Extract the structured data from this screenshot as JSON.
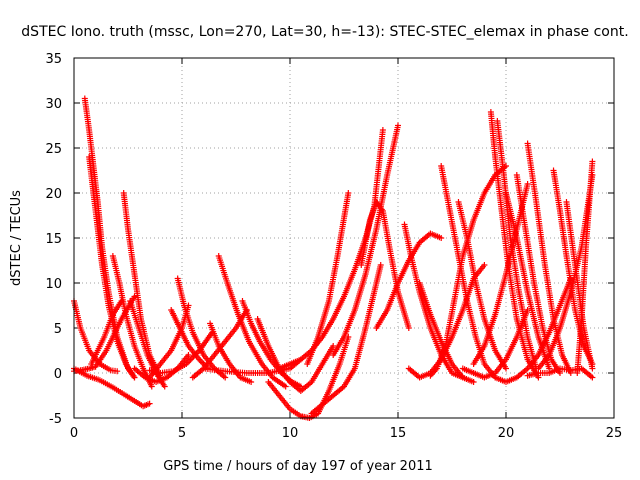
{
  "chart_data": {
    "type": "scatter",
    "title": "dSTEC Iono. truth (mssc, Lon=270, Lat=30, h=-13): STEC-STEC_elemax in phase cont.",
    "xlabel": "GPS time / hours of day 197 of year 2011",
    "ylabel": "dSTEC  / TECUs",
    "xlim": [
      0,
      25
    ],
    "ylim": [
      -5,
      35
    ],
    "xticks": [
      "0",
      "5",
      "10",
      "15",
      "20",
      "25"
    ],
    "yticks": [
      "-5",
      "0",
      "5",
      "10",
      "15",
      "20",
      "25",
      "30",
      "35"
    ],
    "grid": true,
    "marker": "+",
    "color": "#ff0000",
    "series": [
      {
        "x": [
          0.0,
          0.3,
          0.7,
          1.2,
          1.7,
          2.0
        ],
        "y": [
          8.0,
          5.0,
          2.5,
          1.0,
          0.3,
          0.2
        ]
      },
      {
        "x": [
          0.0,
          0.6,
          1.2,
          1.8,
          2.4,
          2.8,
          3.2,
          3.5
        ],
        "y": [
          0.5,
          -0.3,
          -0.8,
          -1.6,
          -2.5,
          -3.1,
          -3.7,
          -3.4
        ]
      },
      {
        "x": [
          0.0,
          0.3,
          0.7,
          1.0,
          1.5,
          1.8,
          2.2,
          2.8
        ],
        "y": [
          0.2,
          0.3,
          0.5,
          0.7,
          2.5,
          4.0,
          6.0,
          8.5
        ]
      },
      {
        "x": [
          0.5,
          0.7,
          0.9,
          1.1,
          1.3,
          1.6,
          2.0,
          2.5,
          2.8
        ],
        "y": [
          30.5,
          27.0,
          23.0,
          19.0,
          14.0,
          9.0,
          4.0,
          0.5,
          -0.5
        ]
      },
      {
        "x": [
          0.7,
          0.9,
          1.1,
          1.3,
          1.6,
          2.0,
          2.4,
          2.8
        ],
        "y": [
          24.0,
          20.0,
          16.0,
          12.0,
          7.5,
          3.5,
          1.0,
          -0.5
        ]
      },
      {
        "x": [
          0.8,
          1.1,
          1.4,
          1.8,
          2.2
        ],
        "y": [
          1.0,
          2.5,
          4.0,
          6.5,
          8.0
        ]
      },
      {
        "x": [
          1.8,
          2.1,
          2.4,
          2.8,
          3.2,
          3.6
        ],
        "y": [
          13.0,
          10.0,
          6.5,
          3.0,
          0.5,
          -1.5
        ]
      },
      {
        "x": [
          2.3,
          2.5,
          2.8,
          3.1,
          3.5,
          4.0
        ],
        "y": [
          20.0,
          16.0,
          11.0,
          6.0,
          2.0,
          -0.5
        ]
      },
      {
        "x": [
          2.6,
          3.0,
          3.4,
          3.8,
          4.2
        ],
        "y": [
          8.0,
          5.0,
          2.0,
          0.0,
          -1.5
        ]
      },
      {
        "x": [
          2.8,
          3.3,
          3.8,
          4.3,
          4.8,
          5.3
        ],
        "y": [
          0.5,
          -0.5,
          -1.0,
          -0.5,
          0.5,
          2.0
        ]
      },
      {
        "x": [
          3.5,
          4.0,
          4.5,
          5.0,
          5.3
        ],
        "y": [
          -0.5,
          1.0,
          2.5,
          5.0,
          7.5
        ]
      },
      {
        "x": [
          4.8,
          5.1,
          5.5,
          6.0,
          6.5,
          7.0
        ],
        "y": [
          10.5,
          7.5,
          4.5,
          2.0,
          0.5,
          -0.5
        ]
      },
      {
        "x": [
          4.5,
          4.9,
          5.3,
          5.8,
          6.2
        ],
        "y": [
          7.0,
          5.0,
          3.0,
          1.5,
          0.5
        ]
      },
      {
        "x": [
          3.5,
          4.0,
          4.6,
          5.2,
          5.8,
          6.4
        ],
        "y": [
          0.3,
          0.0,
          0.2,
          1.0,
          2.5,
          4.5
        ]
      },
      {
        "x": [
          6.3,
          6.7,
          7.2,
          7.7,
          8.2
        ],
        "y": [
          5.5,
          3.0,
          1.0,
          -0.5,
          -1.0
        ]
      },
      {
        "x": [
          5.5,
          6.0,
          6.5,
          7.0,
          7.5,
          8.0
        ],
        "y": [
          -0.5,
          0.5,
          2.0,
          3.5,
          5.0,
          7.0
        ]
      },
      {
        "x": [
          6.7,
          7.1,
          7.6,
          8.1,
          8.7,
          9.2,
          9.8
        ],
        "y": [
          13.0,
          10.0,
          6.5,
          3.5,
          1.0,
          -0.5,
          -1.5
        ]
      },
      {
        "x": [
          7.8,
          8.2,
          8.6,
          9.1,
          9.6,
          10.1,
          10.5
        ],
        "y": [
          8.0,
          5.5,
          3.5,
          1.5,
          0.0,
          -1.0,
          -1.5
        ]
      },
      {
        "x": [
          6.0,
          7.0,
          8.0,
          9.0,
          10.0,
          10.5
        ],
        "y": [
          0.5,
          0.2,
          0.0,
          0.0,
          0.5,
          1.5
        ]
      },
      {
        "x": [
          8.5,
          9.0,
          9.5,
          10.0,
          10.5,
          11.0,
          11.5,
          12.0
        ],
        "y": [
          6.0,
          3.0,
          0.5,
          -1.0,
          -2.0,
          -1.0,
          1.0,
          3.0
        ]
      },
      {
        "x": [
          9.0,
          9.5,
          10.0,
          10.5,
          10.9,
          11.3,
          11.8,
          12.3,
          12.7
        ],
        "y": [
          -1.0,
          -2.5,
          -4.0,
          -4.8,
          -5.0,
          -4.5,
          -2.0,
          1.0,
          4.0
        ]
      },
      {
        "x": [
          11.0,
          11.5,
          12.0,
          12.5,
          13.0,
          13.5,
          14.0,
          14.2
        ],
        "y": [
          -4.5,
          -3.5,
          -2.5,
          -1.5,
          0.5,
          5.0,
          10.0,
          12.0
        ]
      },
      {
        "x": [
          10.8,
          11.3,
          11.8,
          12.2,
          12.7
        ],
        "y": [
          1.0,
          4.0,
          8.0,
          13.0,
          20.0
        ]
      },
      {
        "x": [
          9.5,
          10.0,
          10.5,
          11.0,
          11.5,
          12.0,
          12.5,
          13.0,
          13.5,
          13.9,
          14.3
        ],
        "y": [
          0.5,
          1.0,
          1.5,
          2.5,
          4.0,
          6.0,
          8.5,
          11.5,
          15.0,
          18.5,
          27.0
        ]
      },
      {
        "x": [
          12.0,
          12.5,
          13.0,
          13.5,
          14.0,
          14.5,
          15.0
        ],
        "y": [
          2.0,
          4.0,
          7.0,
          11.0,
          16.0,
          22.0,
          27.5
        ]
      },
      {
        "x": [
          13.3,
          13.7,
          14.0,
          14.3,
          14.6,
          15.0,
          15.5
        ],
        "y": [
          12.0,
          17.0,
          19.0,
          18.0,
          14.0,
          9.0,
          5.0
        ]
      },
      {
        "x": [
          14.0,
          14.5,
          15.0,
          15.5,
          16.0,
          16.5,
          17.0
        ],
        "y": [
          5.0,
          7.0,
          10.0,
          12.5,
          14.5,
          15.5,
          15.0
        ]
      },
      {
        "x": [
          15.3,
          15.6,
          16.0,
          16.5,
          17.0,
          17.5,
          18.0
        ],
        "y": [
          16.5,
          13.0,
          9.0,
          5.0,
          2.0,
          0.0,
          -0.5
        ]
      },
      {
        "x": [
          15.5,
          16.0,
          16.5,
          17.0,
          17.5,
          18.0,
          18.5,
          19.0
        ],
        "y": [
          0.5,
          -0.5,
          0.0,
          1.5,
          4.0,
          7.0,
          10.5,
          12.0
        ]
      },
      {
        "x": [
          16.0,
          16.5,
          17.0,
          17.5,
          18.0,
          18.5
        ],
        "y": [
          10.0,
          6.5,
          3.5,
          1.0,
          -0.5,
          -1.0
        ]
      },
      {
        "x": [
          16.5,
          16.8,
          17.2,
          17.6,
          18.0,
          18.5,
          19.0,
          19.5,
          20.0
        ],
        "y": [
          -0.3,
          0.5,
          3.0,
          8.0,
          13.0,
          17.0,
          20.0,
          22.0,
          23.0
        ]
      },
      {
        "x": [
          17.0,
          17.4,
          17.8,
          18.2,
          18.6,
          19.0,
          19.5
        ],
        "y": [
          23.0,
          18.0,
          13.0,
          8.0,
          4.0,
          1.0,
          -0.5
        ]
      },
      {
        "x": [
          17.8,
          18.2,
          18.6,
          19.0,
          19.5,
          20.0
        ],
        "y": [
          19.0,
          15.0,
          10.0,
          6.0,
          2.5,
          0.5
        ]
      },
      {
        "x": [
          18.0,
          18.5,
          19.0,
          19.5,
          20.0,
          20.5,
          21.0
        ],
        "y": [
          0.5,
          0.0,
          -0.5,
          0.0,
          1.5,
          4.0,
          7.0
        ]
      },
      {
        "x": [
          19.3,
          19.5,
          19.8,
          20.1,
          20.5,
          21.0,
          21.5
        ],
        "y": [
          29.0,
          24.0,
          18.0,
          12.0,
          6.0,
          1.5,
          -0.5
        ]
      },
      {
        "x": [
          19.6,
          19.9,
          20.2,
          20.6,
          21.0,
          21.4
        ],
        "y": [
          28.0,
          22.0,
          15.0,
          9.0,
          4.0,
          0.5
        ]
      },
      {
        "x": [
          18.5,
          19.0,
          19.5,
          20.0,
          20.5,
          21.0
        ],
        "y": [
          1.0,
          3.0,
          6.5,
          11.0,
          16.0,
          21.0
        ]
      },
      {
        "x": [
          20.0,
          20.5,
          21.0,
          21.5,
          22.0
        ],
        "y": [
          20.0,
          15.0,
          9.0,
          4.0,
          0.5
        ]
      },
      {
        "x": [
          20.5,
          20.9,
          21.3,
          21.7,
          22.1,
          22.5
        ],
        "y": [
          22.0,
          16.0,
          10.0,
          5.0,
          1.5,
          0.0
        ]
      },
      {
        "x": [
          21.0,
          21.4,
          21.8,
          22.2,
          22.6,
          23.0
        ],
        "y": [
          25.5,
          19.0,
          12.0,
          6.0,
          2.0,
          0.0
        ]
      },
      {
        "x": [
          19.5,
          20.0,
          20.5,
          21.0,
          21.5,
          22.0,
          22.5,
          23.0
        ],
        "y": [
          -0.5,
          -1.0,
          -0.5,
          0.5,
          2.0,
          4.5,
          7.5,
          10.5
        ]
      },
      {
        "x": [
          21.5,
          22.0,
          22.5,
          23.0,
          23.5,
          24.0
        ],
        "y": [
          0.5,
          2.0,
          5.0,
          9.0,
          14.0,
          22.0
        ]
      },
      {
        "x": [
          22.2,
          22.5,
          22.8,
          23.2,
          23.6,
          24.0
        ],
        "y": [
          22.5,
          18.0,
          13.0,
          7.0,
          3.0,
          1.0
        ]
      },
      {
        "x": [
          22.8,
          23.2,
          23.6,
          24.0
        ],
        "y": [
          19.0,
          12.0,
          5.0,
          0.5
        ]
      },
      {
        "x": [
          23.3,
          23.5,
          23.7,
          24.0
        ],
        "y": [
          0.0,
          6.0,
          14.0,
          23.5
        ]
      },
      {
        "x": [
          21.0,
          21.5,
          22.0,
          22.5,
          23.0,
          23.5,
          24.0
        ],
        "y": [
          -0.3,
          0.0,
          0.0,
          0.5,
          0.3,
          0.5,
          -0.5
        ]
      }
    ]
  }
}
